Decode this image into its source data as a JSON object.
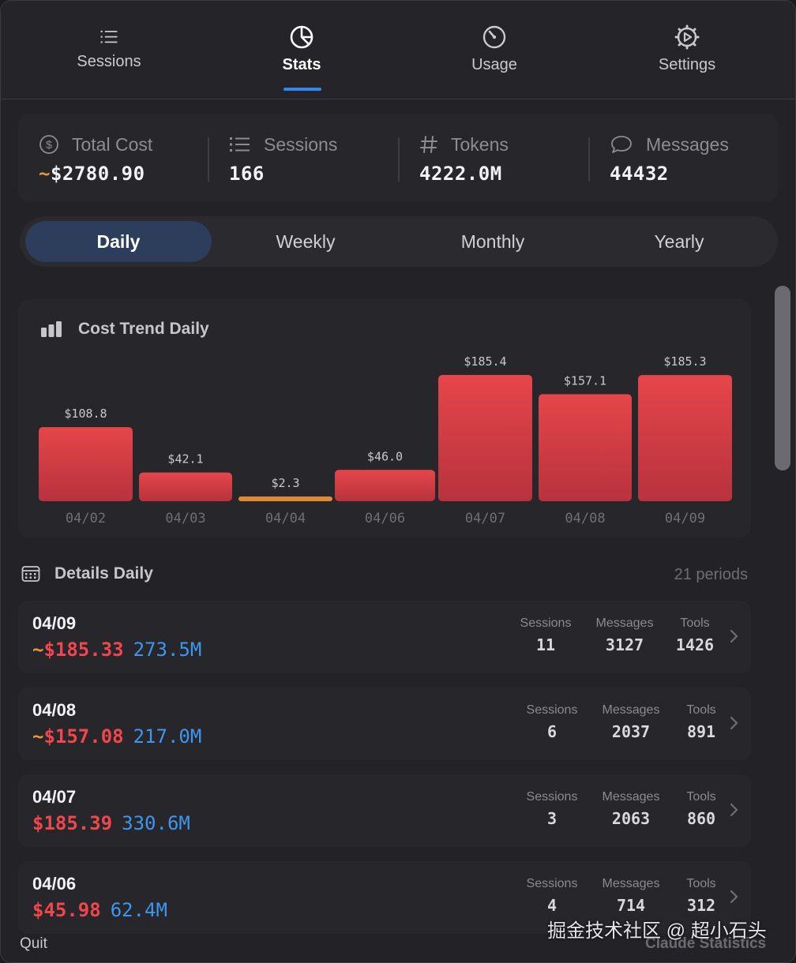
{
  "tabs": [
    {
      "label": "Sessions",
      "icon": "list-icon"
    },
    {
      "label": "Stats",
      "icon": "pie-chart-icon",
      "active": true
    },
    {
      "label": "Usage",
      "icon": "gauge-icon"
    },
    {
      "label": "Settings",
      "icon": "gear-icon"
    }
  ],
  "summary": {
    "total_cost": {
      "label": "Total Cost",
      "tilde": "~",
      "value": "$2780.90"
    },
    "sessions": {
      "label": "Sessions",
      "value": "166"
    },
    "tokens": {
      "label": "Tokens",
      "value": "4222.0M"
    },
    "messages": {
      "label": "Messages",
      "value": "44432"
    }
  },
  "periods": {
    "options": [
      "Daily",
      "Weekly",
      "Monthly",
      "Yearly"
    ],
    "selected": "Daily"
  },
  "chart_title": "Cost Trend Daily",
  "chart_data": {
    "type": "bar",
    "categories": [
      "04/02",
      "04/03",
      "04/04",
      "04/06",
      "04/07",
      "04/08",
      "04/09"
    ],
    "values": [
      108.8,
      42.1,
      2.3,
      46.0,
      185.4,
      157.1,
      185.3
    ],
    "value_labels": [
      "$108.8",
      "$42.1",
      "$2.3",
      "$46.0",
      "$185.4",
      "$157.1",
      "$185.3"
    ],
    "title": "Cost Trend Daily",
    "xlabel": "",
    "ylabel": "",
    "grid": false,
    "colors": {
      "bar_top": "#e5464a",
      "bar_bottom": "#b8323d",
      "low": "#e08a36"
    }
  },
  "details": {
    "title": "Details Daily",
    "count": "21 periods",
    "rows": [
      {
        "date": "04/09",
        "tilde": "~",
        "cost": "$185.33",
        "tokens": "273.5M",
        "sessions_label": "Sessions",
        "sessions": "11",
        "messages_label": "Messages",
        "messages": "3127",
        "tools_label": "Tools",
        "tools": "1426"
      },
      {
        "date": "04/08",
        "tilde": "~",
        "cost": "$157.08",
        "tokens": "217.0M",
        "sessions_label": "Sessions",
        "sessions": "6",
        "messages_label": "Messages",
        "messages": "2037",
        "tools_label": "Tools",
        "tools": "891"
      },
      {
        "date": "04/07",
        "tilde": "",
        "cost": "$185.39",
        "tokens": "330.6M",
        "sessions_label": "Sessions",
        "sessions": "3",
        "messages_label": "Messages",
        "messages": "2063",
        "tools_label": "Tools",
        "tools": "860"
      },
      {
        "date": "04/06",
        "tilde": "",
        "cost": "$45.98",
        "tokens": "62.4M",
        "sessions_label": "Sessions",
        "sessions": "4",
        "messages_label": "Messages",
        "messages": "714",
        "tools_label": "Tools",
        "tools": "312"
      }
    ]
  },
  "footer": {
    "quit": "Quit",
    "app_name": "Claude Statistics",
    "watermark": "掘金技术社区 @ 超小石头"
  },
  "colors": {
    "accent": "#2f86f6",
    "cost_red": "#f0474c",
    "tokens_blue": "#3d96f0",
    "tilde_orange": "#e8973a"
  }
}
